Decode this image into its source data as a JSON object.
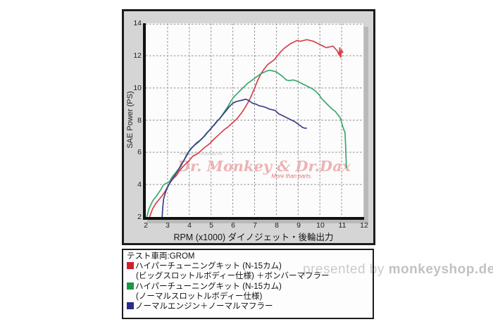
{
  "chart_data": {
    "type": "line",
    "title": "",
    "xlabel": "RPM (x1000) ダイノジェット・後輪出力",
    "ylabel": "SAE Power (PS)",
    "xlim": [
      2,
      12
    ],
    "ylim": [
      2,
      14
    ],
    "xticks": [
      2,
      3,
      4,
      5,
      6,
      7,
      8,
      9,
      10,
      11,
      12
    ],
    "yticks": [
      2,
      4,
      6,
      8,
      10,
      12,
      14
    ],
    "grid": true,
    "legend_position": "below",
    "series": [
      {
        "name": "ハイパーチューニングキット(N-15カム)(ビッグスロットルボディー仕様)＋ボンバーマフラー",
        "color": "#d6404b",
        "points": [
          [
            2.18,
            2.0
          ],
          [
            2.3,
            2.45
          ],
          [
            2.45,
            2.8
          ],
          [
            2.6,
            3.05
          ],
          [
            2.75,
            3.3
          ],
          [
            2.9,
            3.6
          ],
          [
            3.0,
            3.85
          ],
          [
            3.1,
            4.1
          ],
          [
            3.25,
            4.35
          ],
          [
            3.4,
            4.55
          ],
          [
            3.55,
            4.85
          ],
          [
            3.7,
            5.1
          ],
          [
            3.85,
            5.3
          ],
          [
            4.0,
            5.5
          ],
          [
            4.15,
            5.75
          ],
          [
            4.3,
            5.85
          ],
          [
            4.5,
            6.05
          ],
          [
            4.7,
            6.3
          ],
          [
            4.9,
            6.5
          ],
          [
            5.05,
            6.7
          ],
          [
            5.2,
            6.9
          ],
          [
            5.4,
            7.15
          ],
          [
            5.6,
            7.4
          ],
          [
            5.8,
            7.6
          ],
          [
            6.0,
            7.85
          ],
          [
            6.2,
            8.1
          ],
          [
            6.4,
            8.45
          ],
          [
            6.55,
            8.75
          ],
          [
            6.7,
            9.1
          ],
          [
            6.85,
            9.5
          ],
          [
            7.0,
            10.0
          ],
          [
            7.15,
            10.5
          ],
          [
            7.3,
            10.9
          ],
          [
            7.45,
            11.2
          ],
          [
            7.6,
            11.45
          ],
          [
            7.75,
            11.6
          ],
          [
            7.9,
            11.75
          ],
          [
            8.05,
            12.0
          ],
          [
            8.2,
            12.25
          ],
          [
            8.35,
            12.45
          ],
          [
            8.5,
            12.6
          ],
          [
            8.65,
            12.75
          ],
          [
            8.8,
            12.85
          ],
          [
            8.95,
            12.95
          ],
          [
            9.1,
            12.9
          ],
          [
            9.25,
            12.95
          ],
          [
            9.4,
            13.0
          ],
          [
            9.55,
            12.95
          ],
          [
            9.7,
            12.9
          ],
          [
            9.85,
            12.8
          ],
          [
            10.0,
            12.7
          ],
          [
            10.15,
            12.6
          ],
          [
            10.3,
            12.5
          ],
          [
            10.45,
            12.55
          ],
          [
            10.6,
            12.6
          ],
          [
            10.7,
            12.45
          ],
          [
            10.8,
            12.3
          ],
          [
            10.88,
            12.05
          ],
          [
            10.92,
            12.5
          ],
          [
            10.95,
            11.9
          ],
          [
            11.0,
            12.35
          ],
          [
            11.05,
            12.2
          ]
        ]
      },
      {
        "name": "ハイパーチューニングキット(N-15カム)(ノーマルスロットルボディー仕様)",
        "color": "#3ca76d",
        "points": [
          [
            2.05,
            2.0
          ],
          [
            2.15,
            2.5
          ],
          [
            2.25,
            2.8
          ],
          [
            2.35,
            3.05
          ],
          [
            2.5,
            3.3
          ],
          [
            2.6,
            3.5
          ],
          [
            2.7,
            3.7
          ],
          [
            2.8,
            3.95
          ],
          [
            2.9,
            4.05
          ],
          [
            3.0,
            4.1
          ],
          [
            3.1,
            4.2
          ],
          [
            3.2,
            4.45
          ],
          [
            3.35,
            4.7
          ],
          [
            3.5,
            4.95
          ],
          [
            3.65,
            5.25
          ],
          [
            3.8,
            5.6
          ],
          [
            3.95,
            5.95
          ],
          [
            4.1,
            6.25
          ],
          [
            4.25,
            6.45
          ],
          [
            4.4,
            6.6
          ],
          [
            4.55,
            6.8
          ],
          [
            4.7,
            7.0
          ],
          [
            4.85,
            7.25
          ],
          [
            5.0,
            7.5
          ],
          [
            5.15,
            7.7
          ],
          [
            5.3,
            7.95
          ],
          [
            5.45,
            8.2
          ],
          [
            5.6,
            8.5
          ],
          [
            5.75,
            8.8
          ],
          [
            5.9,
            9.15
          ],
          [
            6.05,
            9.45
          ],
          [
            6.2,
            9.65
          ],
          [
            6.35,
            9.85
          ],
          [
            6.5,
            10.05
          ],
          [
            6.65,
            10.25
          ],
          [
            6.8,
            10.4
          ],
          [
            6.95,
            10.55
          ],
          [
            7.1,
            10.7
          ],
          [
            7.25,
            10.85
          ],
          [
            7.4,
            10.95
          ],
          [
            7.55,
            11.05
          ],
          [
            7.7,
            11.1
          ],
          [
            7.85,
            11.05
          ],
          [
            8.0,
            11.0
          ],
          [
            8.15,
            10.85
          ],
          [
            8.3,
            10.7
          ],
          [
            8.45,
            10.5
          ],
          [
            8.6,
            10.45
          ],
          [
            8.75,
            10.5
          ],
          [
            8.9,
            10.45
          ],
          [
            9.05,
            10.35
          ],
          [
            9.2,
            10.25
          ],
          [
            9.35,
            10.15
          ],
          [
            9.5,
            10.05
          ],
          [
            9.65,
            9.95
          ],
          [
            9.8,
            9.8
          ],
          [
            9.95,
            9.6
          ],
          [
            10.1,
            9.3
          ],
          [
            10.25,
            9.1
          ],
          [
            10.4,
            8.9
          ],
          [
            10.55,
            8.7
          ],
          [
            10.7,
            8.55
          ],
          [
            10.85,
            8.3
          ],
          [
            10.95,
            8.1
          ],
          [
            11.05,
            7.6
          ],
          [
            11.1,
            7.4
          ],
          [
            11.15,
            7.25
          ],
          [
            11.18,
            6.5
          ],
          [
            11.2,
            5.7
          ],
          [
            11.22,
            5.05
          ]
        ]
      },
      {
        "name": "ノーマルエンジン＋ノーマルマフラー",
        "color": "#3a3e8d",
        "points": [
          [
            2.75,
            2.0
          ],
          [
            2.78,
            2.6
          ],
          [
            2.82,
            3.1
          ],
          [
            2.88,
            3.4
          ],
          [
            2.95,
            3.7
          ],
          [
            3.05,
            3.95
          ],
          [
            3.15,
            4.2
          ],
          [
            3.3,
            4.5
          ],
          [
            3.45,
            4.8
          ],
          [
            3.6,
            5.15
          ],
          [
            3.75,
            5.5
          ],
          [
            3.9,
            5.9
          ],
          [
            4.05,
            6.2
          ],
          [
            4.2,
            6.4
          ],
          [
            4.35,
            6.6
          ],
          [
            4.5,
            6.75
          ],
          [
            4.65,
            6.95
          ],
          [
            4.8,
            7.2
          ],
          [
            4.95,
            7.4
          ],
          [
            5.1,
            7.65
          ],
          [
            5.25,
            7.9
          ],
          [
            5.4,
            8.1
          ],
          [
            5.55,
            8.35
          ],
          [
            5.7,
            8.6
          ],
          [
            5.85,
            8.85
          ],
          [
            6.0,
            9.05
          ],
          [
            6.15,
            9.15
          ],
          [
            6.3,
            9.2
          ],
          [
            6.45,
            9.25
          ],
          [
            6.6,
            9.3
          ],
          [
            6.75,
            9.2
          ],
          [
            6.9,
            9.05
          ],
          [
            7.05,
            9.0
          ],
          [
            7.2,
            8.9
          ],
          [
            7.35,
            8.85
          ],
          [
            7.5,
            8.8
          ],
          [
            7.65,
            8.7
          ],
          [
            7.8,
            8.65
          ],
          [
            7.95,
            8.6
          ],
          [
            8.1,
            8.4
          ],
          [
            8.25,
            8.3
          ],
          [
            8.4,
            8.2
          ],
          [
            8.55,
            8.1
          ],
          [
            8.7,
            8.0
          ],
          [
            8.85,
            7.9
          ],
          [
            9.0,
            7.75
          ],
          [
            9.1,
            7.65
          ],
          [
            9.2,
            7.55
          ],
          [
            9.3,
            7.5
          ],
          [
            9.38,
            7.5
          ]
        ]
      }
    ]
  },
  "legend": {
    "test_vehicle": "テスト車両:GROM",
    "items": [
      {
        "color": "#cf1f2e",
        "line1": "ハイパーチューニングキット (N-15カム)",
        "line2": "(ビッグスロットルボディー仕様) ＋ボンバーマフラー"
      },
      {
        "color": "#169a43",
        "line1": "ハイパーチューニングキット (N-15カム)",
        "line2": "(ノーマルスロットルボディー仕様)"
      },
      {
        "color": "#282c8c",
        "line1": "ノーマルエンジン＋ノーマルマフラー",
        "line2": ""
      }
    ]
  },
  "watermarks": {
    "chart_main": "Dr. Monkey & Dr.Dax",
    "chart_sub": "More than parts.",
    "chart_tiny": "www.monkeyshop.de",
    "presented_prefix": "presented by ",
    "presented_brand": "monkeyshop.de"
  },
  "colors": {
    "panel_bg": "#d5d5d5",
    "panel_border": "#1c1c1c",
    "plot_bg": "#fcfcfc",
    "grid": "#8c8c8c",
    "axis": "#111111",
    "watermark_pink": "#eeb2b4",
    "watermark_red": "#e4737a",
    "watermark_gray": "#cbcbcb"
  }
}
